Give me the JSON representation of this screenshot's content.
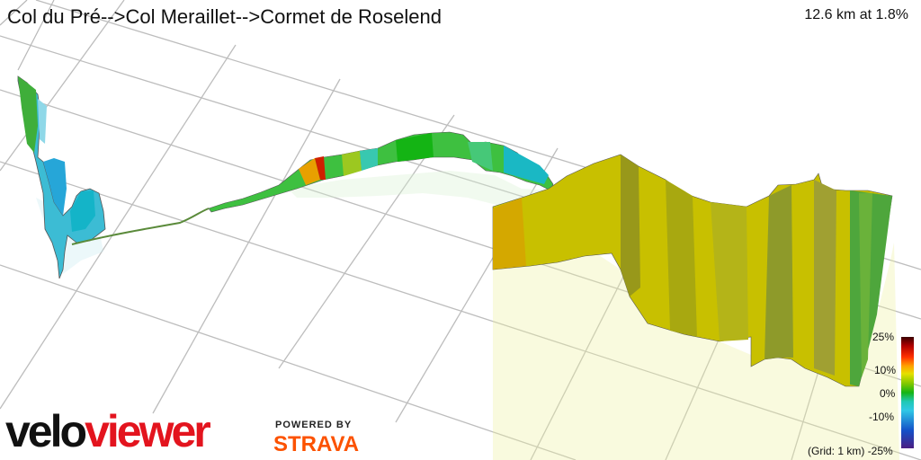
{
  "header": {
    "title": "Col du Pré-->Col Meraillet-->Cormet de Roselend",
    "summary": "12.6 km at 1.8%"
  },
  "legend": {
    "ticks": [
      "25%",
      "10%",
      "0%",
      "-10%",
      "-25%"
    ],
    "grid_note": "(Grid: 1 km)",
    "colors": [
      "#3a0000",
      "#b00000",
      "#ff3000",
      "#ffa000",
      "#e6e000",
      "#80c800",
      "#14b414",
      "#20c8b4",
      "#30c8e6",
      "#1450c8",
      "#4b1e82"
    ]
  },
  "branding": {
    "logo_part1": "velo",
    "logo_part2": "viewer",
    "powered_by": "POWERED BY",
    "strava": "STRAVA"
  },
  "profile": {
    "icon": "3d-elevation-profile",
    "color_legend": {
      "steep_up": "#c8a000",
      "flat": "#14b414",
      "down": "#30c8e6"
    }
  }
}
